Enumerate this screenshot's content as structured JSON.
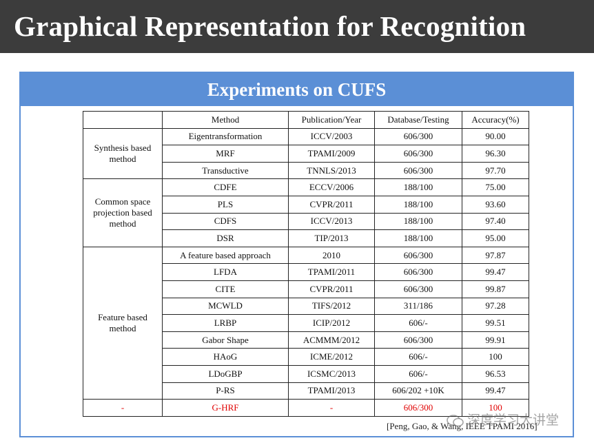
{
  "slide": {
    "title": "Graphical Representation for Recognition",
    "panel_title": "Experiments on CUFS",
    "citation": "[Peng, Gao, & Wang, IEEE TPAMI 2016]",
    "watermark": "深度学习大讲堂"
  },
  "table": {
    "headers": [
      "",
      "Method",
      "Publication/Year",
      "Database/Testing",
      "Accuracy(%)"
    ],
    "groups": [
      {
        "label": "Synthesis based method",
        "rows": [
          [
            "Eigentransformation",
            "ICCV/2003",
            "606/300",
            "90.00"
          ],
          [
            "MRF",
            "TPAMI/2009",
            "606/300",
            "96.30"
          ],
          [
            "Transductive",
            "TNNLS/2013",
            "606/300",
            "97.70"
          ]
        ]
      },
      {
        "label": "Common space projection based method",
        "rows": [
          [
            "CDFE",
            "ECCV/2006",
            "188/100",
            "75.00"
          ],
          [
            "PLS",
            "CVPR/2011",
            "188/100",
            "93.60"
          ],
          [
            "CDFS",
            "ICCV/2013",
            "188/100",
            "97.40"
          ],
          [
            "DSR",
            "TIP/2013",
            "188/100",
            "95.00"
          ]
        ]
      },
      {
        "label": "Feature based method",
        "rows": [
          [
            "A feature based approach",
            "2010",
            "606/300",
            "97.87"
          ],
          [
            "LFDA",
            "TPAMI/2011",
            "606/300",
            "99.47"
          ],
          [
            "CITE",
            "CVPR/2011",
            "606/300",
            "99.87"
          ],
          [
            "MCWLD",
            "TIFS/2012",
            "311/186",
            "97.28"
          ],
          [
            "LRBP",
            "ICIP/2012",
            "606/-",
            "99.51"
          ],
          [
            "Gabor Shape",
            "ACMMM/2012",
            "606/300",
            "99.91"
          ],
          [
            "HAoG",
            "ICME/2012",
            "606/-",
            "100"
          ],
          [
            "LDoGBP",
            "ICSMC/2013",
            "606/-",
            "96.53"
          ],
          [
            "P-RS",
            "TPAMI/2013",
            "606/202 +10K",
            "99.47"
          ]
        ]
      }
    ],
    "highlight_row": [
      "-",
      "G-HRF",
      "-",
      "606/300",
      "100"
    ]
  },
  "colors": {
    "title_bar": "#3c3c3c",
    "panel_accent": "#5b8fd6",
    "highlight_text": "#e00000"
  }
}
